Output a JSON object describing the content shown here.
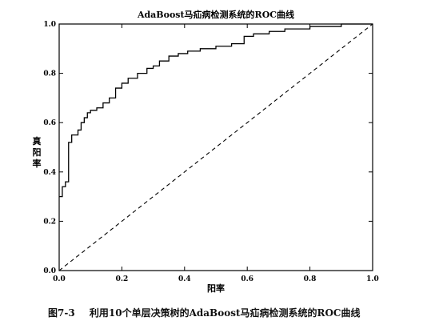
{
  "chart_data": {
    "type": "line",
    "title": "AdaBoost马疝病检测系统的ROC曲线",
    "xlabel": "阳率",
    "ylabel": "真阳率",
    "xlim": [
      0.0,
      1.0
    ],
    "ylim": [
      0.0,
      1.0
    ],
    "xticks": [
      "0.0",
      "0.2",
      "0.4",
      "0.6",
      "0.8",
      "1.0"
    ],
    "yticks": [
      "0.0",
      "0.2",
      "0.4",
      "0.6",
      "0.8",
      "1.0"
    ],
    "grid": false,
    "colors": {
      "roc": "#000000",
      "diagonal": "#000000",
      "axes": "#000000"
    },
    "series": [
      {
        "style": "solid-step",
        "x": [
          0.0,
          0.01,
          0.01,
          0.02,
          0.02,
          0.03,
          0.03,
          0.04,
          0.04,
          0.06,
          0.06,
          0.07,
          0.07,
          0.08,
          0.08,
          0.09,
          0.09,
          0.1,
          0.1,
          0.12,
          0.12,
          0.14,
          0.14,
          0.16,
          0.16,
          0.18,
          0.18,
          0.2,
          0.2,
          0.22,
          0.22,
          0.25,
          0.25,
          0.28,
          0.28,
          0.3,
          0.3,
          0.32,
          0.32,
          0.35,
          0.35,
          0.38,
          0.38,
          0.41,
          0.41,
          0.45,
          0.45,
          0.5,
          0.5,
          0.55,
          0.55,
          0.59,
          0.59,
          0.62,
          0.62,
          0.67,
          0.67,
          0.72,
          0.72,
          0.8,
          0.8,
          0.9,
          0.9,
          1.0
        ],
        "y": [
          0.3,
          0.3,
          0.34,
          0.34,
          0.36,
          0.36,
          0.52,
          0.52,
          0.55,
          0.55,
          0.57,
          0.57,
          0.6,
          0.6,
          0.62,
          0.62,
          0.64,
          0.64,
          0.65,
          0.65,
          0.66,
          0.66,
          0.68,
          0.68,
          0.7,
          0.7,
          0.74,
          0.74,
          0.76,
          0.76,
          0.78,
          0.78,
          0.8,
          0.8,
          0.82,
          0.82,
          0.83,
          0.83,
          0.85,
          0.85,
          0.87,
          0.87,
          0.88,
          0.88,
          0.89,
          0.89,
          0.9,
          0.9,
          0.91,
          0.91,
          0.92,
          0.92,
          0.95,
          0.95,
          0.96,
          0.96,
          0.97,
          0.97,
          0.98,
          0.98,
          0.99,
          0.99,
          1.0,
          1.0
        ]
      },
      {
        "style": "dashed",
        "x": [
          0.0,
          1.0
        ],
        "y": [
          0.0,
          1.0
        ]
      }
    ]
  },
  "caption": {
    "figure_label": "图7-3",
    "text": "利用10个单层决策树的AdaBoost马疝病检测系统的ROC曲线"
  }
}
